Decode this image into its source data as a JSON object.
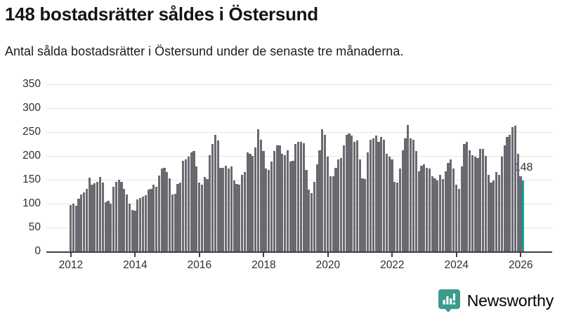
{
  "chart_data": {
    "type": "bar",
    "title": "148 bostadsrätter såldes i Östersund",
    "subtitle": "Antal sålda bostadsrätter i Östersund under de senaste tre månaderna.",
    "xlabel": "",
    "ylabel": "",
    "x_start": "2012 (monthly bars, rolling 3-month sales)",
    "values": [
      97,
      100,
      95,
      111,
      119,
      124,
      131,
      155,
      140,
      143,
      145,
      156,
      144,
      103,
      106,
      100,
      135,
      146,
      150,
      145,
      131,
      119,
      100,
      87,
      85,
      109,
      112,
      114,
      117,
      129,
      131,
      140,
      136,
      159,
      173,
      175,
      166,
      153,
      119,
      121,
      141,
      144,
      190,
      193,
      198,
      207,
      210,
      178,
      144,
      139,
      156,
      151,
      202,
      225,
      244,
      232,
      175,
      175,
      180,
      173,
      178,
      149,
      141,
      139,
      161,
      166,
      207,
      205,
      200,
      217,
      256,
      234,
      210,
      173,
      171,
      188,
      210,
      222,
      222,
      205,
      202,
      212,
      188,
      190,
      225,
      229,
      229,
      227,
      171,
      129,
      122,
      146,
      183,
      212,
      256,
      244,
      198,
      158,
      158,
      175,
      193,
      195,
      222,
      244,
      247,
      242,
      229,
      232,
      193,
      153,
      151,
      207,
      234,
      237,
      242,
      229,
      239,
      234,
      205,
      198,
      193,
      146,
      144,
      173,
      212,
      237,
      264,
      237,
      234,
      210,
      168,
      180,
      183,
      175,
      173,
      158,
      153,
      149,
      161,
      151,
      168,
      185,
      193,
      173,
      139,
      131,
      178,
      225,
      229,
      212,
      202,
      198,
      195,
      215,
      215,
      200,
      161,
      144,
      149,
      166,
      161,
      198,
      222,
      239,
      244,
      260,
      263,
      205,
      157,
      148
    ],
    "yticks": [
      0,
      50,
      100,
      150,
      200,
      250,
      300,
      350
    ],
    "ylim": [
      0,
      350
    ],
    "xticks": [
      {
        "label": "2012",
        "month": 0
      },
      {
        "label": "2014",
        "month": 24
      },
      {
        "label": "2016",
        "month": 48
      },
      {
        "label": "2018",
        "month": 72
      },
      {
        "label": "2020",
        "month": 96
      },
      {
        "label": "2022",
        "month": 120
      },
      {
        "label": "2024",
        "month": 144
      },
      {
        "label": "2026",
        "month": 168
      }
    ],
    "grid": true,
    "legend": false,
    "bar_color": "#696970",
    "highlight": {
      "index": 169,
      "value": 148,
      "label": "148",
      "color": "#14a09b"
    }
  },
  "footer": {
    "brand": "Newsworthy",
    "brand_color": "#3b9b8c",
    "logo_icon": "bar-chart-speech-bubble-icon"
  }
}
